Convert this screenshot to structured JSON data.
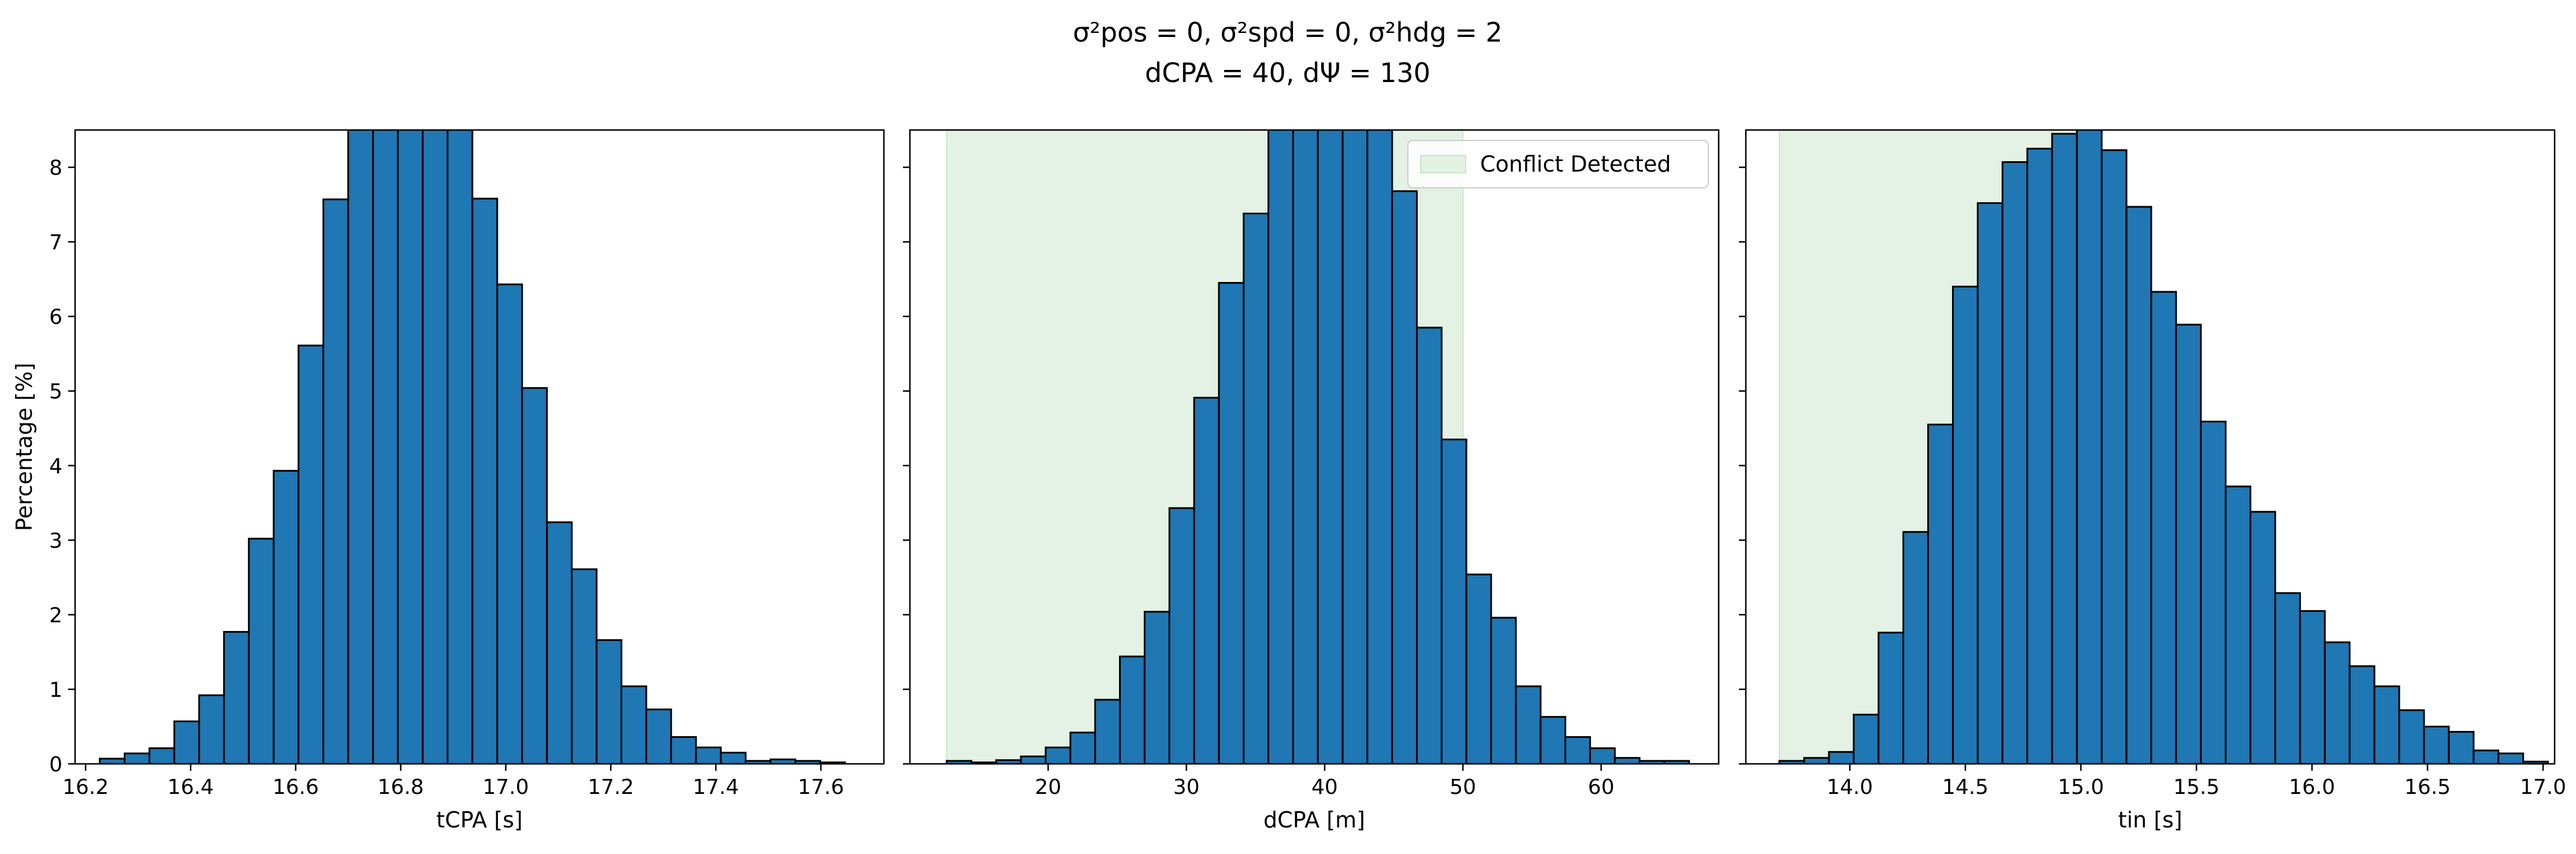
{
  "title": {
    "line1": "σ²pos = 0, σ²spd = 0, σ²hdg = 2",
    "line2": "dCPA = 40, dΨ = 130"
  },
  "colors": {
    "bar": "#1f77b4",
    "edge": "#000000",
    "conflict_region": "#c8e6c9"
  },
  "legend": {
    "label": "Conflict Detected"
  },
  "chart_data": [
    {
      "type": "bar",
      "xlabel": "tCPA [s]",
      "ylabel": "Percentage [%]",
      "xlim": [
        16.18,
        17.72
      ],
      "ylim": [
        0,
        8.5
      ],
      "xticks": [
        16.2,
        16.4,
        16.6,
        16.8,
        17.0,
        17.2,
        17.4,
        17.6
      ],
      "xtick_labels": [
        "16.2",
        "16.4",
        "16.6",
        "16.8",
        "17.0",
        "17.2",
        "17.4",
        "17.6"
      ],
      "yticks": [
        0,
        1,
        2,
        3,
        4,
        5,
        6,
        7,
        8
      ],
      "ytick_labels": [
        "0",
        "1",
        "2",
        "3",
        "4",
        "5",
        "6",
        "7",
        "8"
      ],
      "bin_start": 16.227,
      "bin_width": 0.0473,
      "values": [
        0.07,
        0.14,
        0.21,
        0.57,
        0.92,
        1.77,
        3.02,
        3.93,
        5.61,
        7.57,
        8.6,
        8.6,
        8.6,
        8.6,
        8.6,
        7.58,
        6.43,
        5.04,
        3.24,
        2.61,
        1.66,
        1.04,
        0.73,
        0.36,
        0.22,
        0.15,
        0.04,
        0.06,
        0.04,
        0.02
      ],
      "conflict_region": null,
      "legend": false
    },
    {
      "type": "bar",
      "xlabel": "dCPA [m]",
      "ylabel": "",
      "xlim": [
        10.0,
        68.5
      ],
      "ylim": [
        0,
        8.5
      ],
      "xticks": [
        20,
        30,
        40,
        50,
        60
      ],
      "xtick_labels": [
        "20",
        "30",
        "40",
        "50",
        "60"
      ],
      "yticks": [
        0,
        1,
        2,
        3,
        4,
        5,
        6,
        7,
        8
      ],
      "ytick_labels": [],
      "bin_start": 12.66,
      "bin_width": 1.79,
      "values": [
        0.04,
        0.02,
        0.05,
        0.1,
        0.22,
        0.42,
        0.86,
        1.44,
        2.04,
        3.43,
        4.91,
        6.45,
        7.38,
        8.6,
        8.6,
        8.6,
        8.6,
        8.6,
        7.68,
        5.85,
        4.35,
        2.54,
        1.96,
        1.04,
        0.63,
        0.36,
        0.21,
        0.08,
        0.04,
        0.04
      ],
      "conflict_region": [
        12.66,
        50.0
      ],
      "legend": true,
      "legend_loc": "upper right"
    },
    {
      "type": "bar",
      "xlabel": "tin [s]",
      "ylabel": "",
      "xlim": [
        13.55,
        17.05
      ],
      "ylim": [
        0,
        8.5
      ],
      "xticks": [
        14.0,
        14.5,
        15.0,
        15.5,
        16.0,
        16.5,
        17.0
      ],
      "xtick_labels": [
        "14.0",
        "14.5",
        "15.0",
        "15.5",
        "16.0",
        "16.5",
        "17.0"
      ],
      "yticks": [
        0,
        1,
        2,
        3,
        4,
        5,
        6,
        7,
        8
      ],
      "ytick_labels": [],
      "bin_start": 13.695,
      "bin_width": 0.1073,
      "values": [
        0.04,
        0.08,
        0.16,
        0.66,
        1.76,
        3.11,
        4.55,
        6.4,
        7.52,
        8.07,
        8.25,
        8.45,
        8.55,
        8.23,
        7.47,
        6.33,
        5.89,
        4.59,
        3.72,
        3.38,
        2.29,
        2.05,
        1.63,
        1.31,
        1.04,
        0.72,
        0.5,
        0.43,
        0.18,
        0.14,
        0.03
      ],
      "conflict_region": [
        13.695,
        15.05
      ],
      "legend": false
    }
  ]
}
